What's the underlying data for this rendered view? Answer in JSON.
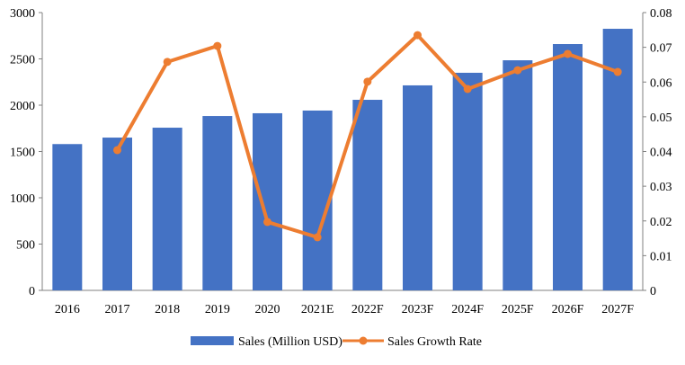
{
  "chart_data": {
    "type": "bar",
    "categories": [
      "2016",
      "2017",
      "2018",
      "2019",
      "2020",
      "2021E",
      "2022F",
      "2023F",
      "2024F",
      "2025F",
      "2026F",
      "2027F"
    ],
    "series": [
      {
        "name": "Sales (Million USD)",
        "type": "bar",
        "axis": "left",
        "color": "#4472C4",
        "values": [
          1580,
          1650,
          1757,
          1883,
          1913,
          1942,
          2058,
          2214,
          2350,
          2485,
          2660,
          2825
        ]
      },
      {
        "name": "Sales Growth Rate",
        "type": "line",
        "axis": "right",
        "color": "#ED7D31",
        "values": [
          null,
          0.0404,
          0.0658,
          0.0704,
          0.0197,
          0.0153,
          0.0601,
          0.0735,
          0.058,
          0.0634,
          0.0681,
          0.0629
        ]
      }
    ],
    "ylim_left": [
      0,
      3000
    ],
    "yticks_left": [
      "0",
      "500",
      "1000",
      "1500",
      "2000",
      "2500",
      "3000"
    ],
    "ylim_right": [
      0,
      0.08
    ],
    "yticks_right": [
      "0",
      "0.01",
      "0.02",
      "0.03",
      "0.04",
      "0.05",
      "0.06",
      "0.07",
      "0.08"
    ],
    "grid": false,
    "legend": "bottom"
  }
}
